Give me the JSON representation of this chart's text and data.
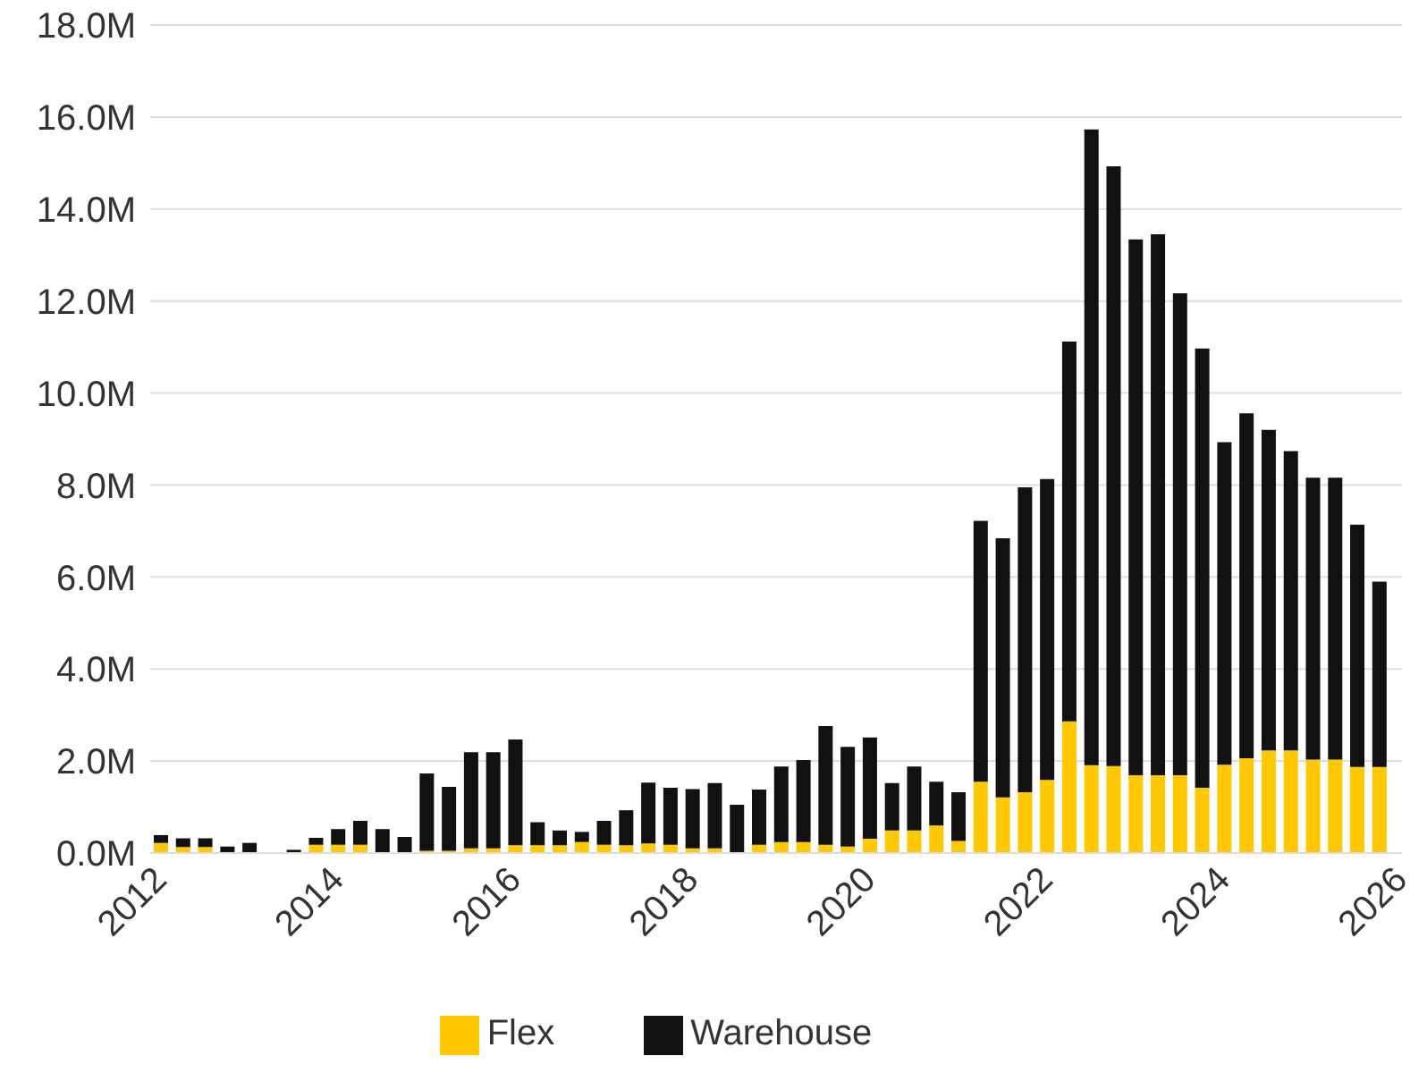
{
  "chart_data": {
    "type": "bar",
    "stacked": true,
    "x": [
      2012,
      2012.25,
      2012.5,
      2012.75,
      2013,
      2013.25,
      2013.5,
      2013.75,
      2014,
      2014.25,
      2014.5,
      2014.75,
      2015,
      2015.25,
      2015.5,
      2015.75,
      2016,
      2016.25,
      2016.5,
      2016.75,
      2017,
      2017.25,
      2017.5,
      2017.75,
      2018,
      2018.25,
      2018.5,
      2018.75,
      2019,
      2019.25,
      2019.5,
      2019.75,
      2020,
      2020.25,
      2020.5,
      2020.75,
      2021,
      2021.25,
      2021.5,
      2021.75,
      2022,
      2022.25,
      2022.5,
      2022.75,
      2023,
      2023.25,
      2023.5,
      2023.75,
      2024,
      2024.25,
      2024.5,
      2024.75,
      2025,
      2025.25,
      2025.5,
      2025.75
    ],
    "series": [
      {
        "name": "Flex",
        "color": "#ffc800",
        "values": [
          0.22,
          0.13,
          0.13,
          0,
          0,
          0,
          0,
          0.18,
          0.18,
          0.18,
          0,
          0,
          0.05,
          0.05,
          0.1,
          0.1,
          0.17,
          0.17,
          0.17,
          0.24,
          0.18,
          0.17,
          0.21,
          0.18,
          0.1,
          0.1,
          null,
          0.18,
          0.24,
          0.24,
          0.18,
          0.14,
          0.31,
          0.49,
          0.49,
          0.6,
          0.26,
          1.55,
          1.21,
          1.32,
          1.59,
          2.86,
          1.91,
          1.89,
          1.69,
          1.69,
          1.69,
          1.42,
          1.92,
          2.06,
          2.23,
          2.23,
          2.03,
          2.03,
          1.87,
          1.87
        ]
      },
      {
        "name": "Warehouse",
        "color": "#111111",
        "values": [
          0.17,
          0.19,
          0.19,
          0.14,
          0.22,
          0,
          0.07,
          0.15,
          0.34,
          0.52,
          0.52,
          0.35,
          1.68,
          1.39,
          2.09,
          2.09,
          2.3,
          0.5,
          0.32,
          0.22,
          0.52,
          0.76,
          1.32,
          1.24,
          1.29,
          1.42,
          1.05,
          1.2,
          1.64,
          1.78,
          2.58,
          2.17,
          2.2,
          1.03,
          1.39,
          0.95,
          1.06,
          5.67,
          5.63,
          6.63,
          6.54,
          8.26,
          13.82,
          13.04,
          11.65,
          11.76,
          10.48,
          9.55,
          7.01,
          7.5,
          6.97,
          6.51,
          6.13,
          6.13,
          5.27,
          4.03
        ]
      }
    ],
    "xlim": [
      2011.875,
      2026
    ],
    "xticks": [
      2012,
      2014,
      2016,
      2018,
      2020,
      2022,
      2024,
      2026
    ],
    "ylim": [
      0,
      18
    ],
    "yticks": [
      {
        "value": 0,
        "label": "0.0M"
      },
      {
        "value": 2,
        "label": "2.0M"
      },
      {
        "value": 4,
        "label": "4.0M"
      },
      {
        "value": 6,
        "label": "6.0M"
      },
      {
        "value": 8,
        "label": "8.0M"
      },
      {
        "value": 10,
        "label": "10.0M"
      },
      {
        "value": 12,
        "label": "12.0M"
      },
      {
        "value": 14,
        "label": "14.0M"
      },
      {
        "value": 16,
        "label": "16.0M"
      },
      {
        "value": 18,
        "label": "18.0M"
      }
    ],
    "grid": "y",
    "legend": "bottom"
  }
}
